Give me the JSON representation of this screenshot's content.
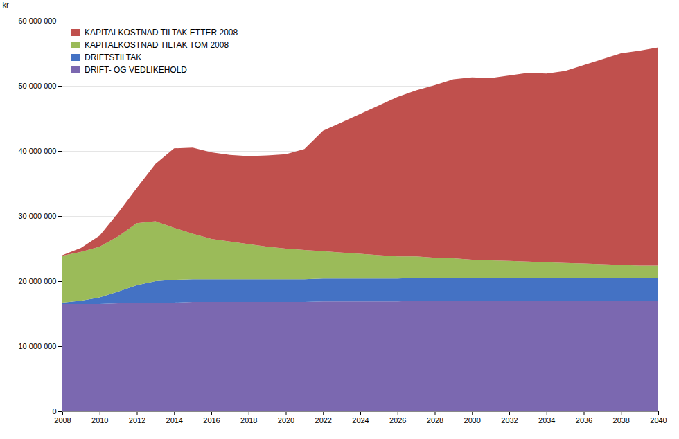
{
  "chart_data": {
    "type": "area",
    "stacked": true,
    "ylabel": "kr",
    "x": [
      2008,
      2009,
      2010,
      2011,
      2012,
      2013,
      2014,
      2015,
      2016,
      2017,
      2018,
      2019,
      2020,
      2021,
      2022,
      2023,
      2024,
      2025,
      2026,
      2027,
      2028,
      2029,
      2030,
      2031,
      2032,
      2033,
      2034,
      2035,
      2036,
      2037,
      2038,
      2039,
      2040
    ],
    "series": [
      {
        "name": "DRIFT- OG VEDLIKEHOLD",
        "color": "#7B68B0",
        "values": [
          16500000,
          16500000,
          16500000,
          16600000,
          16600000,
          16700000,
          16700000,
          16800000,
          16800000,
          16800000,
          16800000,
          16800000,
          16800000,
          16800000,
          16900000,
          16900000,
          16900000,
          16900000,
          16900000,
          17000000,
          17000000,
          17000000,
          17000000,
          17000000,
          17000000,
          17000000,
          17000000,
          17000000,
          17000000,
          17000000,
          17000000,
          17000000,
          17000000
        ]
      },
      {
        "name": "DRIFTSTILTAK",
        "color": "#4472C4",
        "values": [
          200000,
          500000,
          1000000,
          1800000,
          2800000,
          3300000,
          3500000,
          3500000,
          3500000,
          3500000,
          3500000,
          3500000,
          3500000,
          3500000,
          3500000,
          3500000,
          3500000,
          3500000,
          3500000,
          3500000,
          3500000,
          3500000,
          3500000,
          3500000,
          3500000,
          3500000,
          3500000,
          3500000,
          3500000,
          3500000,
          3500000,
          3500000,
          3500000
        ]
      },
      {
        "name": "KAPITALKOSTNAD TILTAK TOM 2008",
        "color": "#9BBB59",
        "values": [
          7200000,
          7500000,
          7800000,
          8500000,
          9500000,
          9200000,
          8000000,
          7000000,
          6200000,
          5800000,
          5400000,
          5000000,
          4700000,
          4500000,
          4200000,
          4000000,
          3800000,
          3600000,
          3400000,
          3300000,
          3100000,
          3000000,
          2800000,
          2700000,
          2600000,
          2500000,
          2400000,
          2300000,
          2200000,
          2100000,
          2000000,
          1900000,
          1900000
        ]
      },
      {
        "name": "KAPITALKOSTNAD TILTAK ETTER 2008",
        "color": "#C0504D",
        "values": [
          100000,
          600000,
          1700000,
          3600000,
          5400000,
          8800000,
          12200000,
          13200000,
          13300000,
          13300000,
          13500000,
          14000000,
          14500000,
          15500000,
          18500000,
          20000000,
          21500000,
          23000000,
          24500000,
          25500000,
          26500000,
          27500000,
          28000000,
          28000000,
          28500000,
          29000000,
          29000000,
          29500000,
          30500000,
          31500000,
          32500000,
          33000000,
          33500000
        ]
      }
    ],
    "xlim": [
      2008,
      2040
    ],
    "xticks": [
      2008,
      2010,
      2012,
      2014,
      2016,
      2018,
      2020,
      2022,
      2024,
      2026,
      2028,
      2030,
      2032,
      2034,
      2036,
      2038,
      2040
    ],
    "ylim": [
      0,
      60000000
    ],
    "yticks": [
      0,
      {
        "value": 10000000,
        "label": "10 000 000"
      },
      {
        "value": 20000000,
        "label": "20 000 000"
      },
      {
        "value": 30000000,
        "label": "30 000 000"
      },
      {
        "value": 40000000,
        "label": "40 000 000"
      },
      {
        "value": 50000000,
        "label": "50 000 000"
      },
      {
        "value": 60000000,
        "label": "60 000 000"
      }
    ],
    "grid": true,
    "legend": "upper left"
  }
}
